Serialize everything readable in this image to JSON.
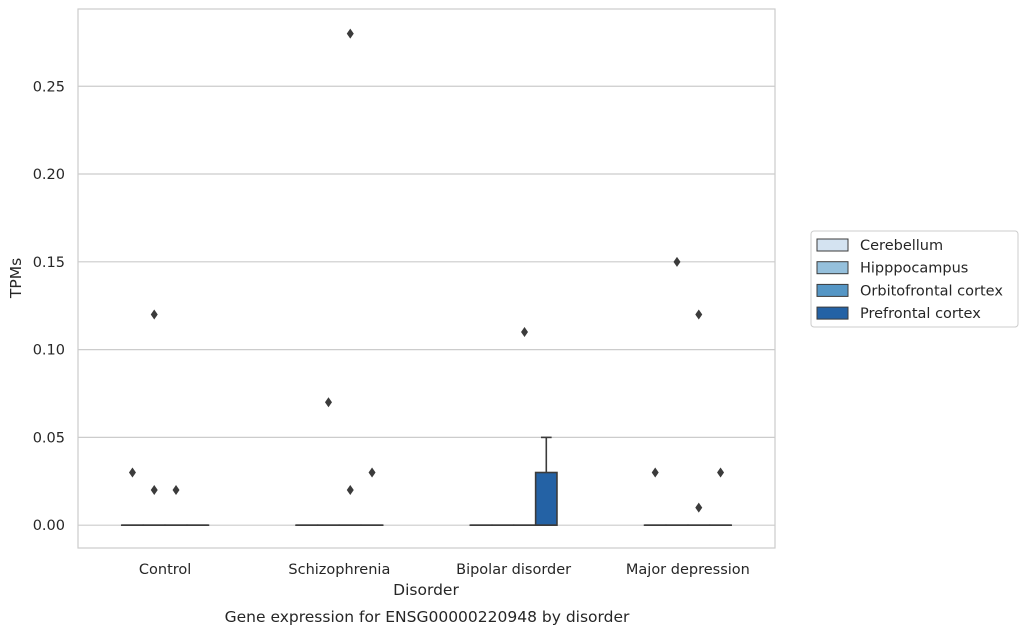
{
  "chart_data": {
    "type": "box",
    "title": "Gene expression for ENSG00000220948 by disorder",
    "xlabel": "Disorder",
    "ylabel": "TPMs",
    "ylim": [
      -0.013,
      0.294
    ],
    "yticks": [
      0.0,
      0.05,
      0.1,
      0.15,
      0.2,
      0.25
    ],
    "ytick_labels": [
      "0.00",
      "0.05",
      "0.10",
      "0.15",
      "0.20",
      "0.25"
    ],
    "grid": "horizontal",
    "legend_position": "right",
    "categories": [
      "Control",
      "Schizophrenia",
      "Bipolar disorder",
      "Major depression"
    ],
    "series": [
      {
        "name": "Cerebellum",
        "color": "#d4e3f1",
        "boxes": [
          {
            "q1": 0,
            "median": 0,
            "q3": 0,
            "whisker_low": 0,
            "whisker_high": 0,
            "outliers": [
              0.03
            ]
          },
          {
            "q1": 0,
            "median": 0,
            "q3": 0,
            "whisker_low": 0,
            "whisker_high": 0,
            "outliers": []
          },
          {
            "q1": 0,
            "median": 0,
            "q3": 0,
            "whisker_low": 0,
            "whisker_high": 0,
            "outliers": []
          },
          {
            "q1": 0,
            "median": 0,
            "q3": 0,
            "whisker_low": 0,
            "whisker_high": 0,
            "outliers": [
              0.03
            ]
          }
        ]
      },
      {
        "name": "Hipppocampus",
        "color": "#95c0dc",
        "boxes": [
          {
            "q1": 0,
            "median": 0,
            "q3": 0,
            "whisker_low": 0,
            "whisker_high": 0,
            "outliers": [
              0.12,
              0.02
            ]
          },
          {
            "q1": 0,
            "median": 0,
            "q3": 0,
            "whisker_low": 0,
            "whisker_high": 0,
            "outliers": [
              0.07
            ]
          },
          {
            "q1": 0,
            "median": 0,
            "q3": 0,
            "whisker_low": 0,
            "whisker_high": 0,
            "outliers": []
          },
          {
            "q1": 0,
            "median": 0,
            "q3": 0,
            "whisker_low": 0,
            "whisker_high": 0,
            "outliers": [
              0.15
            ]
          }
        ]
      },
      {
        "name": "Orbitofrontal cortex",
        "color": "#5596c5",
        "boxes": [
          {
            "q1": 0,
            "median": 0,
            "q3": 0,
            "whisker_low": 0,
            "whisker_high": 0,
            "outliers": [
              0.02
            ]
          },
          {
            "q1": 0,
            "median": 0,
            "q3": 0,
            "whisker_low": 0,
            "whisker_high": 0,
            "outliers": [
              0.28,
              0.02
            ]
          },
          {
            "q1": 0,
            "median": 0,
            "q3": 0,
            "whisker_low": 0,
            "whisker_high": 0,
            "outliers": [
              0.11
            ]
          },
          {
            "q1": 0,
            "median": 0,
            "q3": 0,
            "whisker_low": 0,
            "whisker_high": 0,
            "outliers": [
              0.12,
              0.01
            ]
          }
        ]
      },
      {
        "name": "Prefrontal cortex",
        "color": "#2462a5",
        "boxes": [
          {
            "q1": 0,
            "median": 0,
            "q3": 0,
            "whisker_low": 0,
            "whisker_high": 0,
            "outliers": []
          },
          {
            "q1": 0,
            "median": 0,
            "q3": 0,
            "whisker_low": 0,
            "whisker_high": 0,
            "outliers": [
              0.03
            ]
          },
          {
            "q1": 0,
            "median": 0,
            "q3": 0.03,
            "whisker_low": 0,
            "whisker_high": 0.05,
            "outliers": []
          },
          {
            "q1": 0,
            "median": 0,
            "q3": 0,
            "whisker_low": 0,
            "whisker_high": 0,
            "outliers": [
              0.03
            ]
          }
        ]
      }
    ]
  }
}
